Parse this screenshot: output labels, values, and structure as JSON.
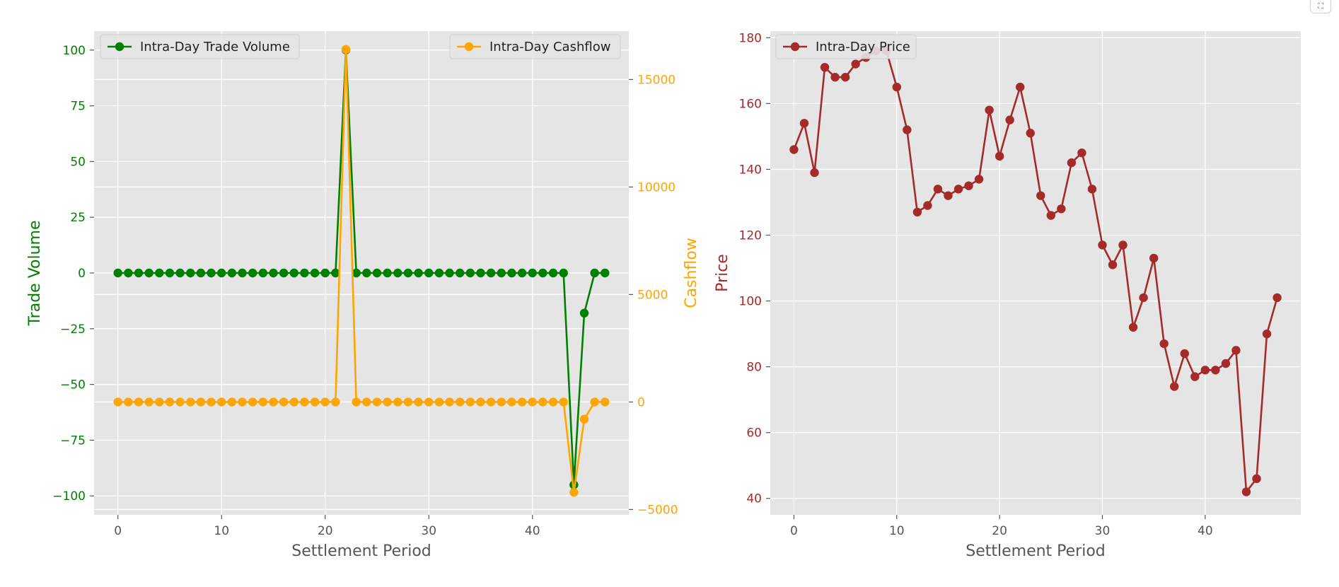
{
  "controls": {
    "expand_icon": "expand-icon",
    "expand_glyph": "⛶"
  },
  "colors": {
    "volume": "#008000",
    "cashflow": "#ffa500",
    "price": "#a52a2a",
    "plot_bg": "#e5e5e5",
    "grid": "#ffffff",
    "tick_text": "#555555"
  },
  "chart_data": [
    {
      "type": "line",
      "title": "",
      "xlabel": "Settlement Period",
      "ylabel": "Trade Volume",
      "y2label": "Cashflow",
      "xlim": [
        -2.3,
        49.3
      ],
      "ylim": [
        -108.5,
        108.5
      ],
      "y2lim": [
        -5250,
        17250
      ],
      "xticks": [
        0,
        10,
        20,
        30,
        40
      ],
      "yticks": [
        -100,
        -75,
        -50,
        -25,
        0,
        25,
        50,
        75,
        100
      ],
      "y2ticks": [
        -5000,
        0,
        5000,
        10000,
        15000
      ],
      "grid": true,
      "x": [
        0,
        1,
        2,
        3,
        4,
        5,
        6,
        7,
        8,
        9,
        10,
        11,
        12,
        13,
        14,
        15,
        16,
        17,
        18,
        19,
        20,
        21,
        22,
        23,
        24,
        25,
        26,
        27,
        28,
        29,
        30,
        31,
        32,
        33,
        34,
        35,
        36,
        37,
        38,
        39,
        40,
        41,
        42,
        43,
        44,
        45,
        46,
        47
      ],
      "series": [
        {
          "name": "Intra-Day Trade Volume",
          "axis": "left",
          "legend_position": "upper-left",
          "values": [
            0,
            0,
            0,
            0,
            0,
            0,
            0,
            0,
            0,
            0,
            0,
            0,
            0,
            0,
            0,
            0,
            0,
            0,
            0,
            0,
            0,
            0,
            100,
            0,
            0,
            0,
            0,
            0,
            0,
            0,
            0,
            0,
            0,
            0,
            0,
            0,
            0,
            0,
            0,
            0,
            0,
            0,
            0,
            0,
            -95,
            -18,
            0,
            0
          ]
        },
        {
          "name": "Intra-Day Cashflow",
          "axis": "right",
          "legend_position": "upper-right",
          "values": [
            0,
            0,
            0,
            0,
            0,
            0,
            0,
            0,
            0,
            0,
            0,
            0,
            0,
            0,
            0,
            0,
            0,
            0,
            0,
            0,
            0,
            0,
            16400,
            0,
            0,
            0,
            0,
            0,
            0,
            0,
            0,
            0,
            0,
            0,
            0,
            0,
            0,
            0,
            0,
            0,
            0,
            0,
            0,
            0,
            -4200,
            -800,
            0,
            0
          ]
        }
      ]
    },
    {
      "type": "line",
      "title": "",
      "xlabel": "Settlement Period",
      "ylabel": "Price",
      "xlim": [
        -2.3,
        49.3
      ],
      "ylim": [
        35,
        182
      ],
      "xticks": [
        0,
        10,
        20,
        30,
        40
      ],
      "yticks": [
        40,
        60,
        80,
        100,
        120,
        140,
        160,
        180
      ],
      "grid": true,
      "x": [
        0,
        1,
        2,
        3,
        4,
        5,
        6,
        7,
        8,
        9,
        10,
        11,
        12,
        13,
        14,
        15,
        16,
        17,
        18,
        19,
        20,
        21,
        22,
        23,
        24,
        25,
        26,
        27,
        28,
        29,
        30,
        31,
        32,
        33,
        34,
        35,
        36,
        37,
        38,
        39,
        40,
        41,
        42,
        43,
        44,
        45,
        46,
        47
      ],
      "series": [
        {
          "name": "Intra-Day Price",
          "axis": "left",
          "legend_position": "upper-left",
          "values": [
            146,
            154,
            139,
            171,
            168,
            168,
            172,
            174,
            176,
            176,
            165,
            152,
            127,
            129,
            134,
            132,
            134,
            135,
            137,
            158,
            144,
            155,
            165,
            151,
            132,
            126,
            128,
            142,
            145,
            134,
            117,
            111,
            117,
            92,
            101,
            113,
            87,
            74,
            84,
            77,
            79,
            79,
            81,
            85,
            42,
            46,
            90,
            101
          ]
        }
      ]
    }
  ]
}
